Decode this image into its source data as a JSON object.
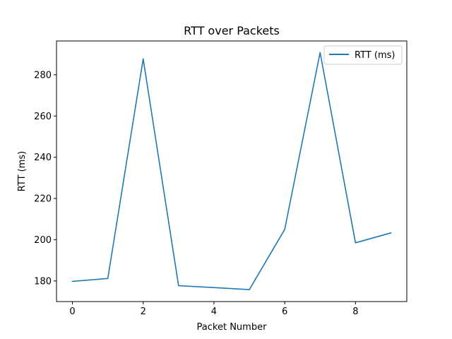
{
  "chart_data": {
    "type": "line",
    "title": "RTT over Packets",
    "xlabel": "Packet Number",
    "ylabel": "RTT (ms)",
    "x": [
      0,
      1,
      2,
      3,
      4,
      5,
      6,
      7,
      8,
      9
    ],
    "series": [
      {
        "name": "RTT (ms)",
        "color": "#1f77b4",
        "values": [
          179.8,
          181.2,
          287.7,
          177.7,
          176.8,
          175.8,
          205.0,
          290.8,
          198.5,
          203.3
        ]
      }
    ],
    "xlim": [
      -0.45,
      9.45
    ],
    "ylim": [
      170.0,
      296.4
    ],
    "xticks": [
      0,
      2,
      4,
      6,
      8
    ],
    "yticks": [
      180,
      200,
      220,
      240,
      260,
      280
    ],
    "grid": false,
    "legend": "upper right"
  }
}
